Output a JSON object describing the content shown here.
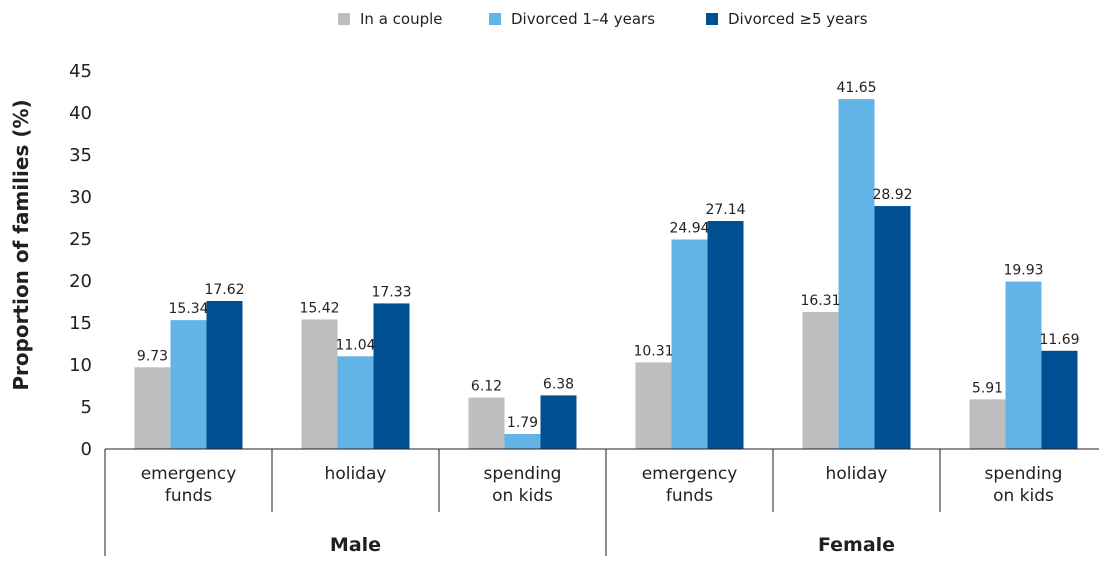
{
  "chart_data": {
    "type": "bar",
    "ylabel": "Proportion of families (%)",
    "ylim": [
      0,
      45
    ],
    "yticks": [
      0,
      5,
      10,
      15,
      20,
      25,
      30,
      35,
      40,
      45
    ],
    "grid": false,
    "legend_position": "top-center",
    "groups": [
      {
        "name": "Male",
        "categories": [
          [
            "emergency",
            "funds"
          ],
          [
            "holiday"
          ],
          [
            "spending",
            "on kids"
          ]
        ]
      },
      {
        "name": "Female",
        "categories": [
          [
            "emergency",
            "funds"
          ],
          [
            "holiday"
          ],
          [
            "spending",
            "on kids"
          ]
        ]
      }
    ],
    "series": [
      {
        "name": "In a couple",
        "color": "#bcbec0",
        "values": [
          9.73,
          15.42,
          6.12,
          10.31,
          16.31,
          5.91
        ]
      },
      {
        "name": "Divorced 1–4 years",
        "color": "#63b4e6",
        "values": [
          15.34,
          11.04,
          1.79,
          24.94,
          41.65,
          19.93
        ]
      },
      {
        "name": "Divorced ≥5 years",
        "color": "#004f93",
        "values": [
          17.62,
          17.33,
          6.38,
          27.14,
          28.92,
          11.69
        ]
      }
    ]
  }
}
